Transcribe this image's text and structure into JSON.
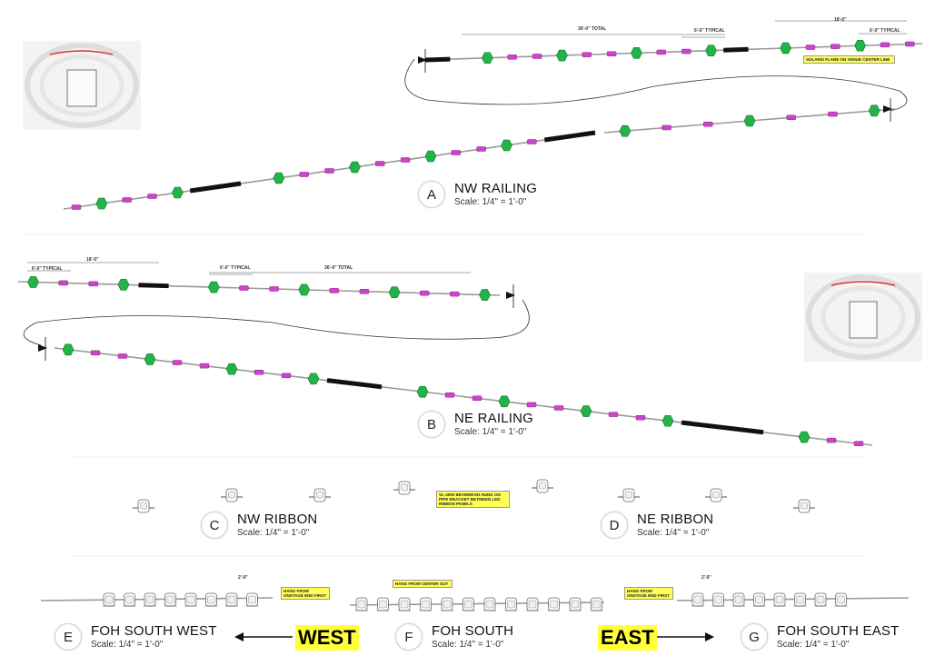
{
  "views": {
    "a": {
      "letter": "A",
      "title": "NW RAILING",
      "scale": "Scale: 1/4\" = 1'-0\""
    },
    "b": {
      "letter": "B",
      "title": "NE RAILING",
      "scale": "Scale: 1/4\" = 1'-0\""
    },
    "c": {
      "letter": "C",
      "title": "NW RIBBON",
      "scale": "Scale: 1/4\" = 1'-0\""
    },
    "d": {
      "letter": "D",
      "title": "NE RIBBON",
      "scale": "Scale: 1/4\" = 1'-0\""
    },
    "e": {
      "letter": "E",
      "title": "FOH SOUTH WEST",
      "scale": "Scale: 1/4\" = 1'-0\""
    },
    "f": {
      "letter": "F",
      "title": "FOH SOUTH",
      "scale": "Scale: 1/4\" = 1'-0\""
    },
    "g": {
      "letter": "G",
      "title": "FOH SOUTH EAST",
      "scale": "Scale: 1/4\" = 1'-0\""
    }
  },
  "directions": {
    "west": "WEST",
    "east": "EAST"
  },
  "notes": {
    "solaris": "SOLARIS FLARE ON VENUE CENTER LINE",
    "ribbon": "VL-4000 BEAMWASH HUNG ON PIPE BRACKET BETWEEN LED RIBBON PANELS",
    "foh_sw": "HANG FROM ONSTAGE END FIRST",
    "foh_s": "HANG FROM CENTER OUT",
    "foh_se": "HANG FROM ONSTAGE END FIRST"
  },
  "dimensions": {
    "nw_total": "36'-0\" TOTAL",
    "nw_typ": "6'-0\" TYPICAL",
    "nw_18": "18'-0\"",
    "nw_typ2": "6'-0\" TYPICAL",
    "ne_typ": "6'-0\" TYPICAL",
    "ne_18": "18'-0\"",
    "ne_typ2": "6'-0\" TYPICAL",
    "ne_total": "36'-0\" TOTAL",
    "foh_sw": "2'-9\"",
    "foh_se": "2'-9\""
  },
  "colors": {
    "fixture_green": "#22b34a",
    "fixture_magenta": "#cc44cc",
    "pipe": "#999999",
    "bar": "#111111",
    "highlight": "#ffff3a",
    "stadium_arc": "#e03030"
  }
}
